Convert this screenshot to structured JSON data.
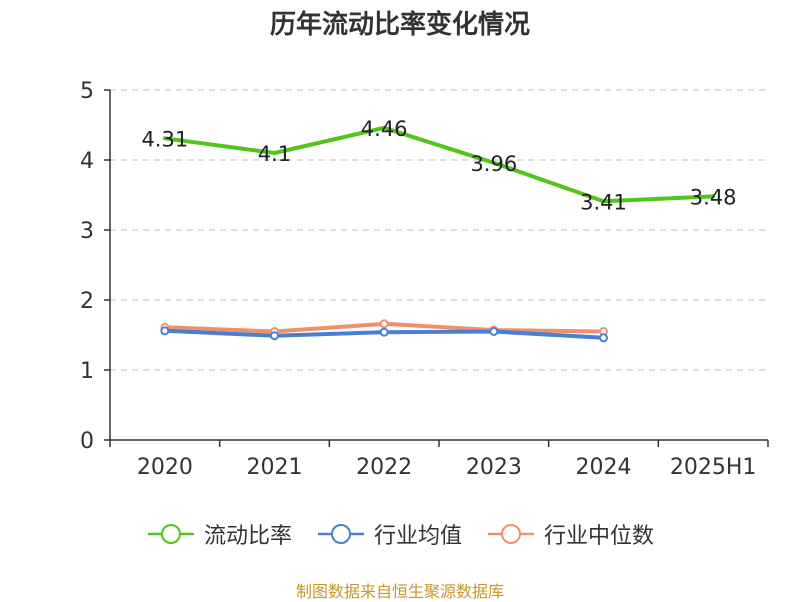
{
  "source": "制图数据来自恒生聚源数据库",
  "chart_data": {
    "type": "line",
    "title": "历年流动比率变化情况",
    "categories": [
      "2020",
      "2021",
      "2022",
      "2023",
      "2024",
      "2025H1"
    ],
    "ylim": [
      0,
      5
    ],
    "yticks": [
      0,
      1,
      2,
      3,
      4,
      5
    ],
    "grid": true,
    "legend_position": "bottom",
    "series": [
      {
        "name": "流动比率",
        "color": "#52c41a",
        "values": [
          4.31,
          4.1,
          4.46,
          3.96,
          3.41,
          3.48
        ],
        "labels": [
          "4.31",
          "4.1",
          "4.46",
          "3.96",
          "3.41",
          "3.48"
        ]
      },
      {
        "name": "行业均值",
        "color": "#4a7fd6",
        "values": [
          1.56,
          1.49,
          1.54,
          1.55,
          1.46,
          null
        ]
      },
      {
        "name": "行业中位数",
        "color": "#f0906a",
        "values": [
          1.61,
          1.55,
          1.66,
          1.57,
          1.55,
          null
        ]
      }
    ]
  }
}
